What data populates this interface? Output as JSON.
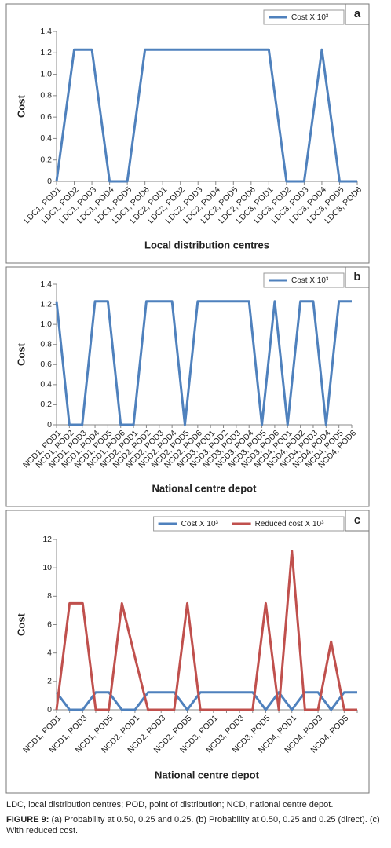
{
  "chart_data": [
    {
      "type": "line",
      "panel_label": "a",
      "xlabel": "Local distribution centres",
      "ylabel": "Cost",
      "categories": [
        "LDC1, POD1",
        "LDC1, POD2",
        "LDC1, POD3",
        "LDC1, POD4",
        "LDC1, POD5",
        "LDC1, POD6",
        "LDC2, POD1",
        "LDC2, POD2",
        "LDC2, POD3",
        "LDC2, POD4",
        "LDC2, POD5",
        "LDC2, POD6",
        "LDC3, POD1",
        "LDC3, POD2",
        "LDC3, POD3",
        "LDC3, POD4",
        "LDC3, POD5",
        "LDC3, POD6"
      ],
      "series": [
        {
          "name": "Cost X 10³",
          "color": "#4f81bd",
          "values": [
            0,
            1.23,
            1.23,
            0,
            0,
            1.23,
            1.23,
            1.23,
            1.23,
            1.23,
            1.23,
            1.23,
            1.23,
            0,
            0,
            1.23,
            0,
            0
          ]
        }
      ],
      "ylim": [
        0,
        1.4
      ],
      "yticks": [
        0,
        0.2,
        0.4,
        0.6,
        0.8,
        {
          "value": 1,
          "label": "1.0"
        },
        1.2,
        1.4
      ],
      "legend": "upper right"
    },
    {
      "type": "line",
      "panel_label": "b",
      "xlabel": "National centre depot",
      "ylabel": "Cost",
      "categories": [
        "NCD1, POD1",
        "NCD1, POD2",
        "NCD1, POD3",
        "NCD1, POD4",
        "NCD1, POD5",
        "NCD1, POD6",
        "NCD2, POD1",
        "NCD2, POD2",
        "NCD2, POD3",
        "NCD2, POD4",
        "NCD2, POD5",
        "NCD2, POD6",
        "NCD3, POD1",
        "NCD3, POD2",
        "NCD3, POD3",
        "NCD3, POD4",
        "NCD3, POD5",
        "NCD3, POD6",
        "NCD4, POD1",
        "NCD4, POD2",
        "NCD4, POD3",
        "NCD4, POD4",
        "NCD4, POD5",
        "NCD4, POD6"
      ],
      "series": [
        {
          "name": "Cost X 10³",
          "color": "#4f81bd",
          "values": [
            1.23,
            0,
            0,
            1.23,
            1.23,
            0,
            0,
            1.23,
            1.23,
            1.23,
            0,
            1.23,
            1.23,
            1.23,
            1.23,
            1.23,
            0,
            1.23,
            0,
            1.23,
            1.23,
            0,
            1.23,
            1.23
          ]
        }
      ],
      "ylim": [
        0,
        1.4
      ],
      "yticks": [
        0,
        0.2,
        0.4,
        0.6,
        0.8,
        {
          "value": 1,
          "label": "1.0"
        },
        1.2,
        1.4
      ],
      "legend": "upper right"
    },
    {
      "type": "line",
      "panel_label": "c",
      "xlabel": "National centre depot",
      "ylabel": "Cost",
      "categories": [
        "NCD1, POD1",
        null,
        "NCD1, POD3",
        null,
        "NCD1, POD5",
        null,
        "NCD2, POD1",
        null,
        "NCD2, POD3",
        null,
        "NCD2, POD5",
        null,
        "NCD3, POD1",
        null,
        "NCD3, POD3",
        null,
        "NCD3, POD5",
        null,
        "NCD4, POD1",
        null,
        "NCD4, POD3",
        null,
        "NCD4, POD5",
        null
      ],
      "series": [
        {
          "name": "Cost X 10³",
          "color": "#4f81bd",
          "values": [
            1.23,
            0,
            0,
            1.23,
            1.23,
            0,
            0,
            1.23,
            1.23,
            1.23,
            0,
            1.23,
            1.23,
            1.23,
            1.23,
            1.23,
            0,
            1.23,
            0,
            1.23,
            1.23,
            0,
            1.23,
            1.23
          ]
        },
        {
          "name": "Reduced cost X 10³",
          "color": "#c0504d",
          "values": [
            0,
            7.5,
            7.5,
            0,
            0,
            7.5,
            3.7,
            0,
            0,
            0,
            7.5,
            0,
            0,
            0,
            0,
            0,
            7.5,
            0,
            11.2,
            0,
            0,
            4.8,
            0,
            0
          ]
        }
      ],
      "ylim": [
        0,
        12
      ],
      "yticks": [
        0,
        2,
        4,
        6,
        8,
        10,
        12
      ],
      "legend": "upper right"
    }
  ],
  "caption": {
    "abbreviations": "LDC, local distribution centres; POD, point of distribution; NCD, national centre depot.",
    "figure_label": "FIGURE 9:",
    "text": "(a) Probability at 0.50, 0.25 and 0.25. (b) Probability at 0.50, 0.25 and 0.25 (direct). (c) With reduced cost."
  }
}
